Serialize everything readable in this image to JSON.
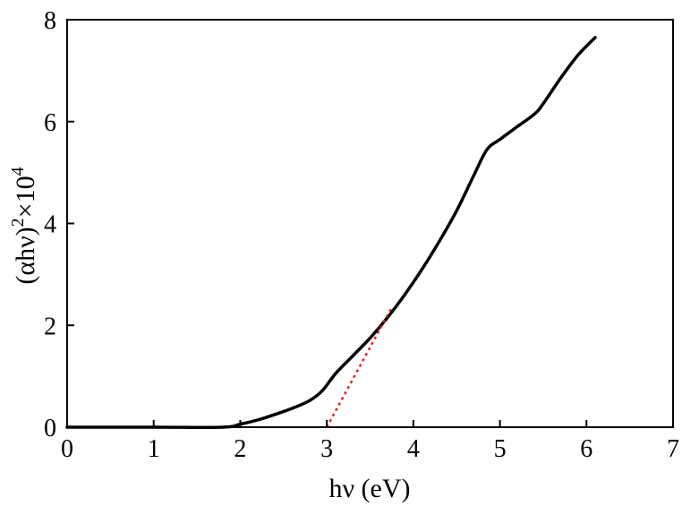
{
  "chart_data": {
    "type": "line",
    "xlabel": "hν (eV)",
    "ylabel_base": "(αhν)",
    "ylabel_sup1": "2",
    "ylabel_mid": "×10",
    "ylabel_sup2": "4",
    "xlim": [
      0,
      7
    ],
    "ylim": [
      0,
      8
    ],
    "x_ticks": [
      0,
      1,
      2,
      3,
      4,
      5,
      6,
      7
    ],
    "y_ticks": [
      0,
      2,
      4,
      6,
      8
    ],
    "grid": false,
    "legend": "none",
    "series": [
      {
        "color": "#000000",
        "style": "solid",
        "x": [
          0.0,
          1.0,
          1.8,
          2.0,
          2.2,
          2.4,
          2.6,
          2.8,
          2.95,
          3.1,
          3.3,
          3.5,
          3.7,
          3.9,
          4.1,
          4.3,
          4.5,
          4.7,
          4.85,
          5.0,
          5.2,
          5.4,
          5.5,
          5.7,
          5.9,
          6.1
        ],
        "y": [
          0.0,
          0.0,
          0.0,
          0.06,
          0.14,
          0.25,
          0.37,
          0.52,
          0.72,
          1.05,
          1.4,
          1.75,
          2.15,
          2.6,
          3.1,
          3.65,
          4.25,
          4.95,
          5.45,
          5.65,
          5.9,
          6.15,
          6.35,
          6.85,
          7.3,
          7.65
        ]
      },
      {
        "color": "#e02020",
        "style": "dotted",
        "x": [
          3.0,
          3.75
        ],
        "y": [
          0.0,
          2.35
        ]
      }
    ]
  }
}
